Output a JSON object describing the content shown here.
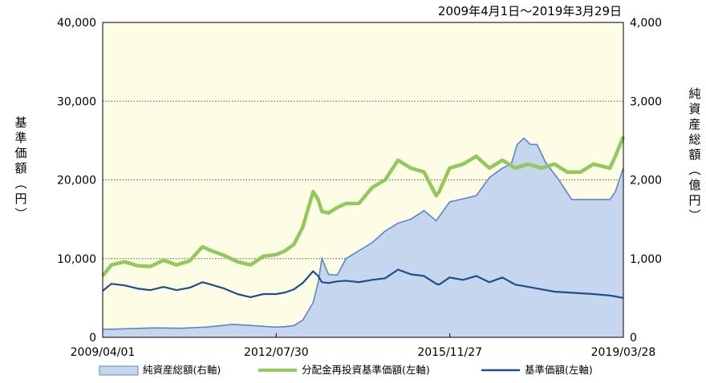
{
  "chart_data": {
    "type": "line",
    "title": "2009年4月1日～2019年3月29日",
    "ylabel_left": "基準価額（円）",
    "ylabel_right": "純資産総額（億円）",
    "x_ticks": [
      "2009/04/01",
      "2012/07/30",
      "2015/11/27",
      "2019/03/28"
    ],
    "xlim": [
      "2009-04-01",
      "2019-03-29"
    ],
    "ylim_left": [
      0,
      40000
    ],
    "ylim_right": [
      0,
      4000
    ],
    "yticks_left": [
      "0",
      "10,000",
      "20,000",
      "30,000",
      "40,000"
    ],
    "yticks_right": [
      "0",
      "1,000",
      "2,000",
      "3,000",
      "4,000"
    ],
    "grid": "horizontal-dotted",
    "legend_position": "bottom",
    "series": [
      {
        "name": "純資産総額(右軸)",
        "axis": "right",
        "style": "area",
        "color": "#5b87c5",
        "fill": "#c5d6ee",
        "x": [
          "2009-04-01",
          "2009-10-01",
          "2010-04-01",
          "2010-10-01",
          "2011-04-01",
          "2011-10-01",
          "2012-04-01",
          "2012-06-01",
          "2012-07-30",
          "2012-10-01",
          "2012-12-01",
          "2013-02-01",
          "2013-04-15",
          "2013-05-20",
          "2013-06-15",
          "2013-08-01",
          "2013-10-01",
          "2013-12-01",
          "2014-03-01",
          "2014-06-01",
          "2014-09-01",
          "2014-12-01",
          "2015-03-01",
          "2015-06-01",
          "2015-08-25",
          "2015-11-27",
          "2016-03-01",
          "2016-06-01",
          "2016-09-01",
          "2016-12-01",
          "2017-02-01",
          "2017-03-15",
          "2017-05-01",
          "2017-06-15",
          "2017-08-01",
          "2017-10-01",
          "2018-01-01",
          "2018-04-01",
          "2018-07-01",
          "2018-10-01",
          "2018-12-25",
          "2019-02-01",
          "2019-03-29"
        ],
        "values": [
          100,
          110,
          120,
          115,
          130,
          165,
          145,
          135,
          130,
          135,
          150,
          220,
          440,
          700,
          1000,
          800,
          790,
          1000,
          1100,
          1200,
          1350,
          1450,
          1500,
          1610,
          1480,
          1720,
          1760,
          1800,
          2030,
          2150,
          2200,
          2450,
          2530,
          2450,
          2450,
          2220,
          2000,
          1750,
          1750,
          1750,
          1750,
          1850,
          2150
        ]
      },
      {
        "name": "分配金再投資基準価額(左軸)",
        "axis": "left",
        "style": "line",
        "color": "#92c95a",
        "x": [
          "2009-04-01",
          "2009-06-01",
          "2009-09-01",
          "2009-12-01",
          "2010-03-01",
          "2010-06-01",
          "2010-09-01",
          "2010-12-01",
          "2011-03-01",
          "2011-05-01",
          "2011-08-01",
          "2011-11-01",
          "2012-02-01",
          "2012-05-01",
          "2012-07-30",
          "2012-10-01",
          "2012-12-01",
          "2013-02-01",
          "2013-04-15",
          "2013-05-20",
          "2013-06-15",
          "2013-08-01",
          "2013-10-01",
          "2013-12-01",
          "2014-03-01",
          "2014-06-01",
          "2014-09-01",
          "2014-12-01",
          "2015-03-01",
          "2015-06-01",
          "2015-08-25",
          "2015-09-15",
          "2015-11-27",
          "2016-03-01",
          "2016-06-01",
          "2016-09-01",
          "2016-12-01",
          "2017-03-01",
          "2017-06-01",
          "2017-09-01",
          "2017-12-01",
          "2018-03-01",
          "2018-06-01",
          "2018-09-01",
          "2018-12-25",
          "2019-02-01",
          "2019-03-29"
        ],
        "values": [
          7800,
          9200,
          9600,
          9100,
          9000,
          9800,
          9200,
          9700,
          11500,
          11000,
          10400,
          9600,
          9200,
          10300,
          10500,
          11000,
          11800,
          14000,
          18500,
          17500,
          16000,
          15800,
          16500,
          17000,
          17000,
          19000,
          20000,
          22500,
          21500,
          21000,
          18000,
          18500,
          21500,
          22000,
          23000,
          21500,
          22500,
          21500,
          22000,
          21500,
          22000,
          21000,
          21000,
          22000,
          21500,
          23000,
          25500
        ]
      },
      {
        "name": "基準価額(左軸)",
        "axis": "left",
        "style": "line",
        "color": "#1f4e8c",
        "x": [
          "2009-04-01",
          "2009-06-01",
          "2009-09-01",
          "2009-12-01",
          "2010-03-01",
          "2010-06-01",
          "2010-09-01",
          "2010-12-01",
          "2011-03-01",
          "2011-05-01",
          "2011-08-01",
          "2011-11-01",
          "2012-02-01",
          "2012-05-01",
          "2012-07-30",
          "2012-10-01",
          "2012-12-01",
          "2013-02-01",
          "2013-04-15",
          "2013-05-20",
          "2013-06-15",
          "2013-08-01",
          "2013-10-01",
          "2013-12-01",
          "2014-03-01",
          "2014-06-01",
          "2014-09-01",
          "2014-12-01",
          "2015-03-01",
          "2015-06-01",
          "2015-08-25",
          "2015-09-15",
          "2015-11-27",
          "2016-03-01",
          "2016-06-01",
          "2016-09-01",
          "2016-12-01",
          "2017-03-01",
          "2017-06-01",
          "2017-09-01",
          "2017-12-01",
          "2018-03-01",
          "2018-06-01",
          "2018-09-01",
          "2018-12-25",
          "2019-02-01",
          "2019-03-29"
        ],
        "values": [
          5900,
          6800,
          6600,
          6200,
          6000,
          6400,
          6000,
          6300,
          7000,
          6700,
          6200,
          5500,
          5100,
          5500,
          5500,
          5700,
          6100,
          6900,
          8400,
          7800,
          7000,
          6900,
          7100,
          7200,
          7000,
          7300,
          7500,
          8600,
          8000,
          7800,
          6800,
          6700,
          7600,
          7300,
          7800,
          7000,
          7600,
          6700,
          6400,
          6100,
          5800,
          5700,
          5600,
          5500,
          5300,
          5200,
          5000
        ]
      }
    ]
  }
}
